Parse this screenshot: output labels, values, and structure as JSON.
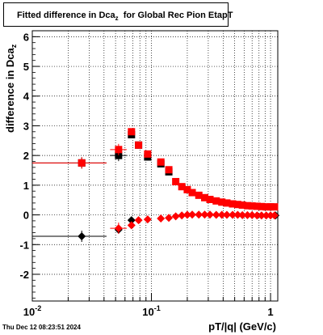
{
  "title": {
    "main": "Fitted difference in Dca",
    "sub": "z",
    "rest": "for Global Rec Pion EtapT"
  },
  "footer": "Thu Dec 12 08:23:51 2024",
  "chart_data": {
    "type": "scatter",
    "x_scale": "log",
    "xlim": [
      0.01,
      1.15
    ],
    "ylim": [
      -2.9,
      6.2
    ],
    "xlabel": "pT/|q| (GeV/c)",
    "ylabel_main": "difference in Dca",
    "ylabel_sub": "z",
    "x_ticks": [
      {
        "value": 0.01,
        "base": "10",
        "exp": "-2"
      },
      {
        "value": 0.1,
        "base": "10",
        "exp": "-1"
      },
      {
        "value": 1,
        "base": "1",
        "exp": ""
      }
    ],
    "y_ticks": [
      -2,
      -1,
      0,
      1,
      2,
      3,
      4,
      5,
      6
    ],
    "grid": true,
    "series": [
      {
        "marker": "square",
        "color": "#000000",
        "points": [
          {
            "x": 0.026,
            "y": 1.75,
            "xl": 0.01,
            "xh": 0.042
          },
          {
            "x": 0.053,
            "y": 2.0,
            "xl": 0.045,
            "xh": 0.062
          },
          {
            "x": 0.068,
            "y": 2.7
          },
          {
            "x": 0.078,
            "y": 2.35
          },
          {
            "x": 0.093,
            "y": 1.95
          },
          {
            "x": 0.12,
            "y": 1.72
          },
          {
            "x": 0.14,
            "y": 1.45
          }
        ]
      },
      {
        "marker": "square",
        "color": "#ff0000",
        "points": [
          {
            "x": 0.026,
            "y": 1.75,
            "xl": 0.01,
            "xh": 0.042
          },
          {
            "x": 0.053,
            "y": 2.2,
            "xl": 0.045,
            "xh": 0.062
          },
          {
            "x": 0.068,
            "y": 2.8
          },
          {
            "x": 0.078,
            "y": 2.35
          },
          {
            "x": 0.093,
            "y": 2.05
          },
          {
            "x": 0.12,
            "y": 1.78
          },
          {
            "x": 0.14,
            "y": 1.52
          },
          {
            "x": 0.16,
            "y": 1.12
          },
          {
            "x": 0.18,
            "y": 0.95
          },
          {
            "x": 0.2,
            "y": 0.85
          },
          {
            "x": 0.22,
            "y": 0.75
          },
          {
            "x": 0.25,
            "y": 0.66
          },
          {
            "x": 0.28,
            "y": 0.58
          },
          {
            "x": 0.31,
            "y": 0.52
          },
          {
            "x": 0.35,
            "y": 0.47
          },
          {
            "x": 0.39,
            "y": 0.43
          },
          {
            "x": 0.43,
            "y": 0.4
          },
          {
            "x": 0.48,
            "y": 0.37
          },
          {
            "x": 0.53,
            "y": 0.35
          },
          {
            "x": 0.58,
            "y": 0.33
          },
          {
            "x": 0.64,
            "y": 0.31
          },
          {
            "x": 0.7,
            "y": 0.3
          },
          {
            "x": 0.77,
            "y": 0.29
          },
          {
            "x": 0.84,
            "y": 0.28
          },
          {
            "x": 0.92,
            "y": 0.27
          },
          {
            "x": 1.0,
            "y": 0.27
          },
          {
            "x": 1.08,
            "y": 0.27
          }
        ]
      },
      {
        "marker": "diamond",
        "color": "#000000",
        "points": [
          {
            "x": 0.026,
            "y": -0.72,
            "xl": 0.01,
            "xh": 0.042
          },
          {
            "x": 0.053,
            "y": -0.5
          },
          {
            "x": 0.068,
            "y": -0.18
          },
          {
            "x": 1.1,
            "y": -0.02
          }
        ]
      },
      {
        "marker": "diamond",
        "color": "#ff0000",
        "points": [
          {
            "x": 0.053,
            "y": -0.45,
            "xl": 0.045,
            "xh": 0.062
          },
          {
            "x": 0.068,
            "y": -0.35
          },
          {
            "x": 0.078,
            "y": -0.18
          },
          {
            "x": 0.093,
            "y": -0.15
          },
          {
            "x": 0.12,
            "y": -0.12
          },
          {
            "x": 0.14,
            "y": -0.1
          },
          {
            "x": 0.16,
            "y": -0.05
          },
          {
            "x": 0.18,
            "y": -0.02
          },
          {
            "x": 0.2,
            "y": 0.0
          },
          {
            "x": 0.22,
            "y": 0.01
          },
          {
            "x": 0.25,
            "y": 0.01
          },
          {
            "x": 0.28,
            "y": 0.01
          },
          {
            "x": 0.31,
            "y": 0.01
          },
          {
            "x": 0.35,
            "y": 0.0
          },
          {
            "x": 0.39,
            "y": 0.0
          },
          {
            "x": 0.43,
            "y": 0.0
          },
          {
            "x": 0.48,
            "y": 0.0
          },
          {
            "x": 0.53,
            "y": 0.0
          },
          {
            "x": 0.58,
            "y": -0.01
          },
          {
            "x": 0.64,
            "y": -0.01
          },
          {
            "x": 0.7,
            "y": -0.01
          },
          {
            "x": 0.77,
            "y": -0.02
          },
          {
            "x": 0.84,
            "y": -0.02
          },
          {
            "x": 0.92,
            "y": -0.02
          },
          {
            "x": 1.0,
            "y": -0.02
          },
          {
            "x": 1.08,
            "y": -0.02
          }
        ]
      }
    ]
  }
}
